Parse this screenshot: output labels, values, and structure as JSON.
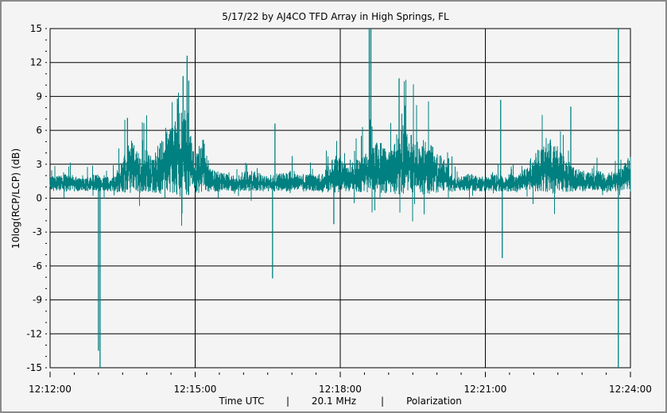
{
  "chart_data": {
    "type": "line",
    "title": "5/17/22  by  AJ4CO TFD Array  in  High Springs, FL",
    "ylabel": "10log(RCP/LCP)  (dB)",
    "xlabel_parts": [
      "Time UTC",
      "|",
      "20.1 MHz",
      "|",
      "Polarization"
    ],
    "ylim": [
      -15,
      15
    ],
    "yticks": [
      15,
      12,
      9,
      6,
      3,
      0,
      -3,
      -6,
      -9,
      -12,
      -15
    ],
    "xlim": [
      "12:12:00",
      "12:24:00"
    ],
    "xticks": [
      "12:12:00",
      "12:15:00",
      "12:18:00",
      "12:21:00",
      "12:24:00"
    ],
    "grid": true,
    "series_color": "#008080",
    "sample_interval_s": 10,
    "values": [
      1.2,
      1.2,
      1.3,
      1.2,
      1.1,
      1.2,
      1.3,
      1.2,
      1.2,
      2.0,
      2.5,
      2.0,
      2.2,
      2.0,
      2.5,
      3.0,
      3.5,
      3.5,
      2.0,
      2.5,
      1.5,
      1.3,
      1.3,
      1.2,
      1.3,
      1.4,
      1.3,
      1.2,
      1.3,
      1.3,
      1.4,
      1.3,
      1.3,
      1.2,
      1.3,
      2.0,
      1.8,
      1.5,
      1.8,
      2.0,
      2.2,
      2.5,
      2.0,
      2.5,
      3.0,
      2.8,
      2.5,
      2.5,
      2.0,
      1.8,
      1.3,
      1.2,
      1.3,
      1.2,
      1.2,
      1.3,
      1.2,
      1.3,
      1.3,
      1.5,
      2.0,
      2.2,
      2.5,
      2.2,
      1.8,
      1.5,
      1.4,
      1.3,
      1.4,
      1.3,
      1.4,
      1.5,
      2.0
    ],
    "spikes": [
      {
        "t": "12:13:00",
        "v": -13.5
      },
      {
        "t": "12:13:02",
        "v": -15
      },
      {
        "t": "12:13:36",
        "v": 7.1
      },
      {
        "t": "12:14:38",
        "v": 8.8
      },
      {
        "t": "12:14:45",
        "v": 10.8
      },
      {
        "t": "12:14:50",
        "v": 12.6
      },
      {
        "t": "12:14:52",
        "v": 10.4
      },
      {
        "t": "12:16:36",
        "v": -7.1
      },
      {
        "t": "12:16:39",
        "v": 6.6
      },
      {
        "t": "12:17:52",
        "v": -2.3
      },
      {
        "t": "12:18:36",
        "v": 15
      },
      {
        "t": "12:18:38",
        "v": 15
      },
      {
        "t": "12:19:13",
        "v": 10.6
      },
      {
        "t": "12:19:20",
        "v": 8.2
      },
      {
        "t": "12:21:19",
        "v": 8.7
      },
      {
        "t": "12:21:21",
        "v": -5.3
      },
      {
        "t": "12:22:46",
        "v": 8.1
      },
      {
        "t": "12:23:45",
        "v": 15
      },
      {
        "t": "12:23:45",
        "v": -15
      }
    ]
  }
}
